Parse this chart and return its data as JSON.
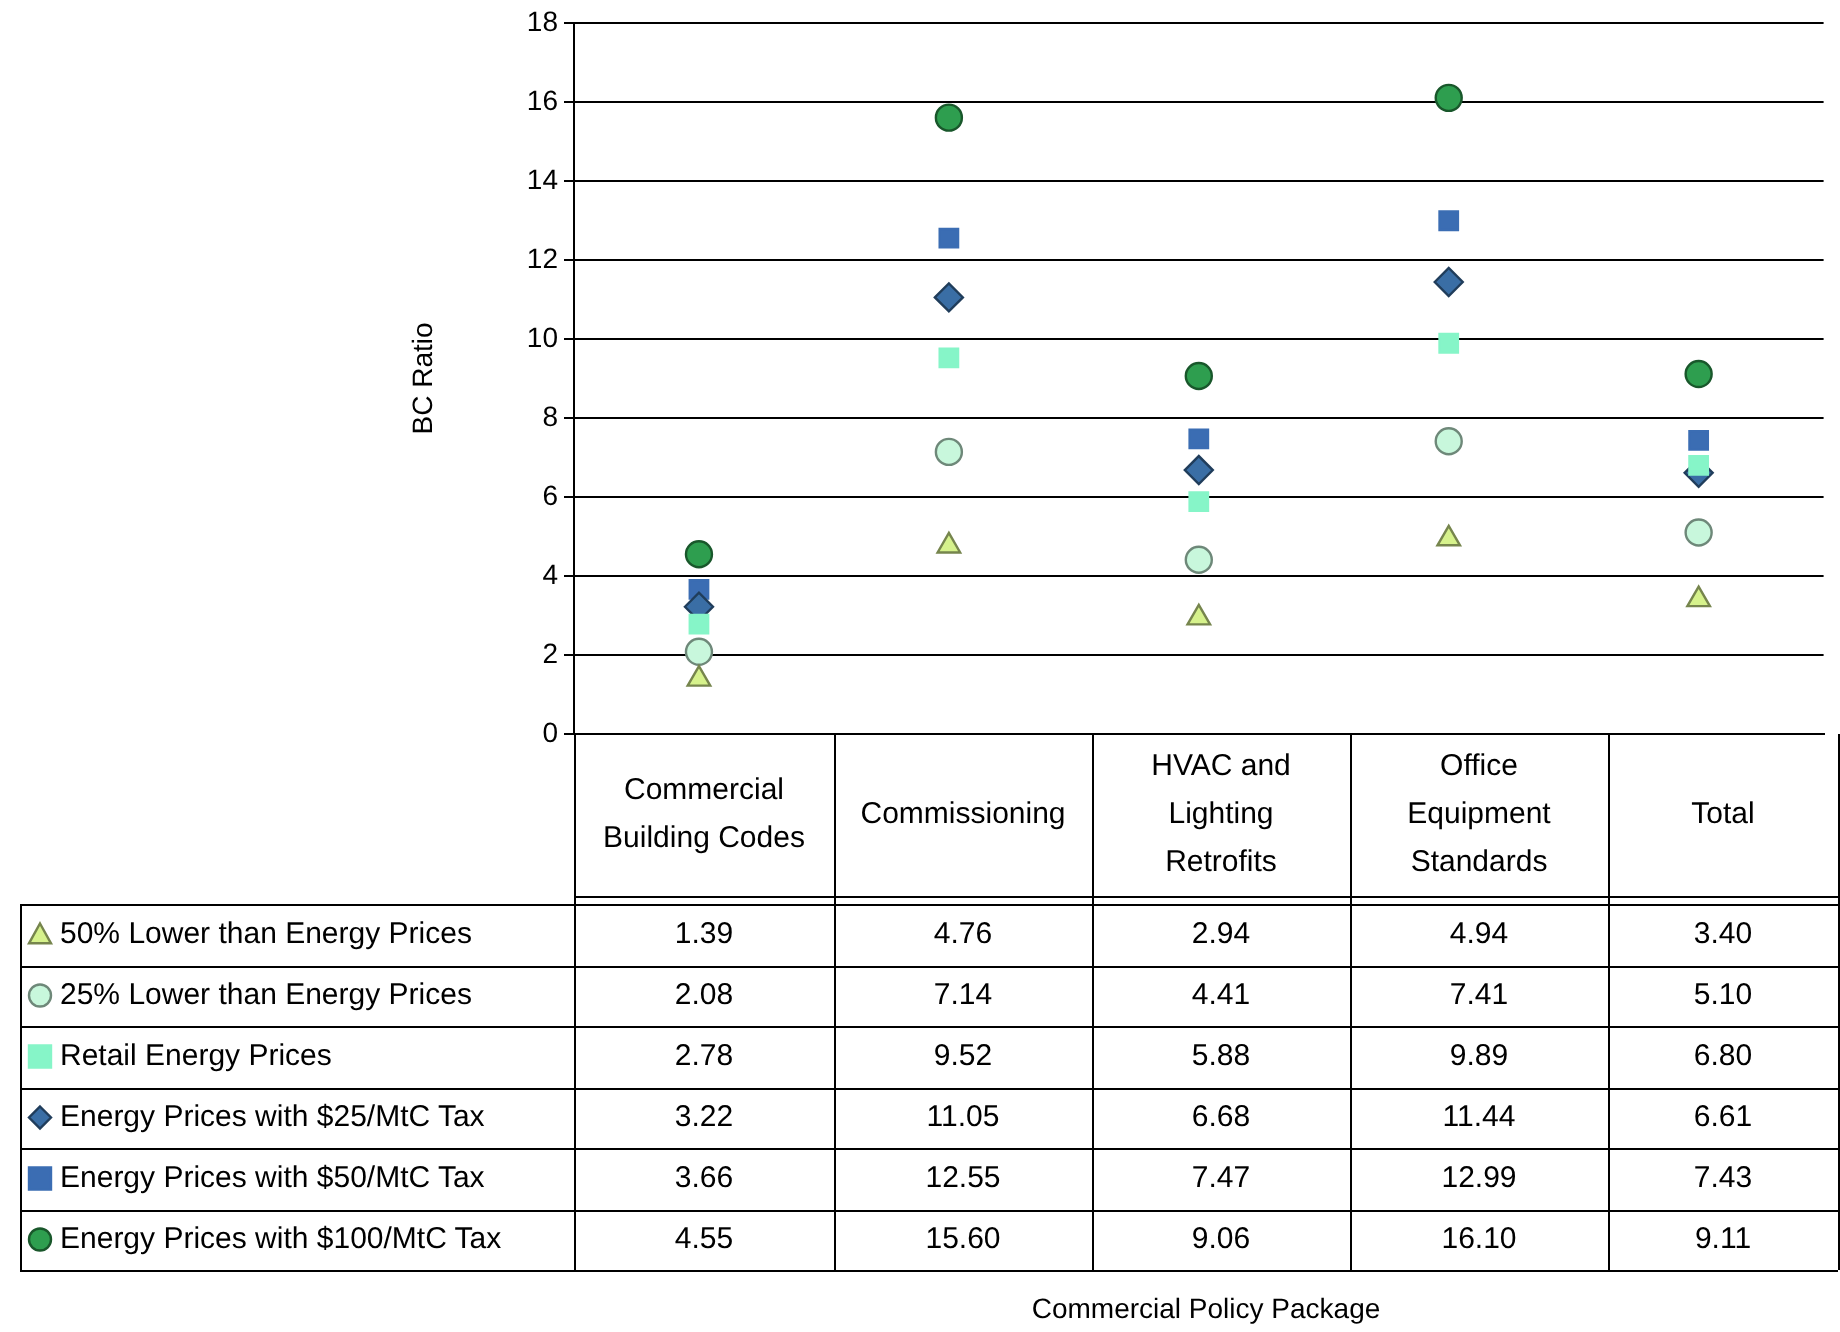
{
  "chart_data": {
    "type": "scatter",
    "ylabel": "BC Ratio",
    "annotations": [
      "Commercial Policy Package"
    ],
    "categories": [
      "Commercial Building Codes",
      "Commissioning",
      "HVAC and Lighting Retrofits",
      "Office Equipment Standards",
      "Total"
    ],
    "ylim": [
      0,
      18
    ],
    "yticks": [
      0,
      2,
      4,
      6,
      8,
      10,
      12,
      14,
      16,
      18
    ],
    "grid": "y",
    "legend": "bottom",
    "data_labels": true,
    "series": [
      {
        "name": "50% Lower than Energy Prices",
        "color": "#d6f28c",
        "marker": "triangle",
        "values": [
          1.39,
          4.76,
          2.94,
          4.94,
          3.4
        ],
        "value_labels": [
          "1.39",
          "4.76",
          "2.94",
          "4.94",
          "3.40"
        ]
      },
      {
        "name": "25% Lower than Energy Prices",
        "color": "#c8f7dc",
        "marker": "circle",
        "values": [
          2.08,
          7.14,
          4.41,
          7.41,
          5.1
        ],
        "value_labels": [
          "2.08",
          "7.14",
          "4.41",
          "7.41",
          "5.10"
        ]
      },
      {
        "name": "Retail Energy Prices",
        "color": "#86f5c8",
        "marker": "square",
        "values": [
          2.78,
          9.52,
          5.88,
          9.89,
          6.8
        ],
        "value_labels": [
          "2.78",
          "9.52",
          "5.88",
          "9.89",
          "6.80"
        ]
      },
      {
        "name": "Energy Prices with $25/MtC Tax",
        "color": "#3a6ea5",
        "marker": "diamond",
        "values": [
          3.22,
          11.05,
          6.68,
          11.44,
          6.61
        ],
        "value_labels": [
          "3.22",
          "11.05",
          "6.68",
          "11.44",
          "6.61"
        ]
      },
      {
        "name": "Energy Prices with $50/MtC Tax",
        "color": "#3b6db3",
        "marker": "square",
        "values": [
          3.66,
          12.55,
          7.47,
          12.99,
          7.43
        ],
        "value_labels": [
          "3.66",
          "12.55",
          "7.47",
          "12.99",
          "7.43"
        ]
      },
      {
        "name": "Energy Prices with $100/MtC Tax",
        "color": "#2e9e4f",
        "marker": "circle",
        "values": [
          4.55,
          15.6,
          9.06,
          16.1,
          9.11
        ],
        "value_labels": [
          "4.55",
          "15.60",
          "9.06",
          "16.10",
          "9.11"
        ]
      }
    ]
  }
}
